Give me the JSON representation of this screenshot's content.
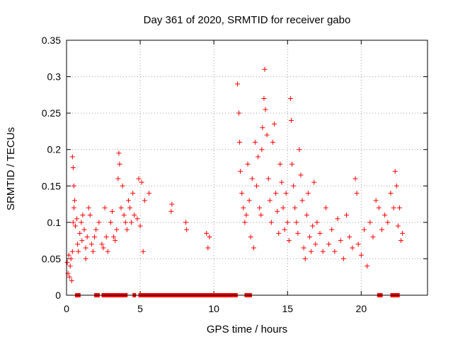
{
  "chart_data": {
    "type": "scatter",
    "title": "Day 361 of 2020, SRMTID for receiver gabo",
    "xlabel": "GPS time / hours",
    "ylabel": "SRMTID / TECUs",
    "xlim": [
      0,
      24.5
    ],
    "ylim": [
      0,
      0.35
    ],
    "x_ticks": [
      0,
      5,
      10,
      15,
      20
    ],
    "x_tick_labels": [
      "0",
      "5",
      "10",
      "15",
      "20"
    ],
    "y_ticks": [
      0,
      0.05,
      0.1,
      0.15,
      0.2,
      0.25,
      0.3,
      0.35
    ],
    "y_tick_labels": [
      "0",
      "0.05",
      "0.1",
      "0.15",
      "0.2",
      "0.25",
      "0.3",
      "0.35"
    ],
    "grid": true,
    "marker_color": "#ff0000",
    "series": [
      {
        "name": "SRMTID",
        "marker": "plus",
        "points": [
          [
            0.05,
            0.045
          ],
          [
            0.1,
            0.03
          ],
          [
            0.15,
            0.055
          ],
          [
            0.2,
            0.025
          ],
          [
            0.25,
            0.04
          ],
          [
            0.3,
            0.05
          ],
          [
            0.35,
            0.02
          ],
          [
            0.4,
            0.06
          ],
          [
            0.4,
            0.19
          ],
          [
            0.45,
            0.175
          ],
          [
            0.45,
            0.1
          ],
          [
            0.5,
            0.15
          ],
          [
            0.5,
            0.12
          ],
          [
            0.55,
            0.13
          ],
          [
            0.6,
            0.095
          ],
          [
            0.7,
            0.105
          ],
          [
            0.75,
            0.07
          ],
          [
            0.8,
            0.06
          ],
          [
            0.9,
            0.085
          ],
          [
            1.0,
            0.1
          ],
          [
            1.05,
            0.075
          ],
          [
            1.1,
            0.11
          ],
          [
            1.2,
            0.09
          ],
          [
            1.3,
            0.065
          ],
          [
            1.3,
            0.05
          ],
          [
            1.4,
            0.08
          ],
          [
            1.5,
            0.12
          ],
          [
            1.6,
            0.11
          ],
          [
            1.7,
            0.07
          ],
          [
            1.8,
            0.06
          ],
          [
            1.9,
            0.08
          ],
          [
            2.0,
            0.09
          ],
          [
            2.2,
            0.1
          ],
          [
            2.4,
            0.07
          ],
          [
            2.5,
            0.065
          ],
          [
            2.6,
            0.12
          ],
          [
            2.7,
            0.08
          ],
          [
            2.8,
            0.06
          ],
          [
            3.0,
            0.1
          ],
          [
            3.1,
            0.115
          ],
          [
            3.2,
            0.08
          ],
          [
            3.3,
            0.075
          ],
          [
            3.4,
            0.09
          ],
          [
            3.5,
            0.16
          ],
          [
            3.55,
            0.195
          ],
          [
            3.6,
            0.18
          ],
          [
            3.7,
            0.12
          ],
          [
            3.8,
            0.15
          ],
          [
            3.9,
            0.11
          ],
          [
            4.0,
            0.1
          ],
          [
            4.1,
            0.09
          ],
          [
            4.2,
            0.13
          ],
          [
            4.3,
            0.12
          ],
          [
            4.4,
            0.1
          ],
          [
            4.5,
            0.14
          ],
          [
            4.6,
            0.11
          ],
          [
            4.8,
            0.105
          ],
          [
            4.9,
            0.16
          ],
          [
            5.0,
            0.095
          ],
          [
            5.1,
            0.155
          ],
          [
            5.2,
            0.06
          ],
          [
            5.3,
            0.13
          ],
          [
            5.6,
            0.14
          ],
          [
            7.1,
            0.115
          ],
          [
            7.15,
            0.125
          ],
          [
            8.1,
            0.1
          ],
          [
            8.15,
            0.09
          ],
          [
            9.5,
            0.085
          ],
          [
            9.6,
            0.065
          ],
          [
            9.7,
            0.08
          ],
          [
            11.6,
            0.29
          ],
          [
            11.7,
            0.25
          ],
          [
            11.75,
            0.21
          ],
          [
            11.8,
            0.17
          ],
          [
            11.9,
            0.14
          ],
          [
            12.0,
            0.12
          ],
          [
            12.1,
            0.1
          ],
          [
            12.2,
            0.11
          ],
          [
            12.3,
            0.18
          ],
          [
            12.4,
            0.13
          ],
          [
            12.5,
            0.08
          ],
          [
            12.6,
            0.16
          ],
          [
            12.7,
            0.065
          ],
          [
            12.8,
            0.21
          ],
          [
            12.9,
            0.15
          ],
          [
            13.0,
            0.19
          ],
          [
            13.1,
            0.12
          ],
          [
            13.2,
            0.11
          ],
          [
            13.25,
            0.2
          ],
          [
            13.3,
            0.23
          ],
          [
            13.4,
            0.27
          ],
          [
            13.45,
            0.31
          ],
          [
            13.5,
            0.255
          ],
          [
            13.6,
            0.22
          ],
          [
            13.7,
            0.16
          ],
          [
            13.8,
            0.13
          ],
          [
            13.9,
            0.1
          ],
          [
            14.0,
            0.21
          ],
          [
            14.1,
            0.235
          ],
          [
            14.2,
            0.14
          ],
          [
            14.3,
            0.115
          ],
          [
            14.4,
            0.085
          ],
          [
            14.5,
            0.18
          ],
          [
            14.6,
            0.155
          ],
          [
            14.7,
            0.12
          ],
          [
            14.8,
            0.09
          ],
          [
            14.9,
            0.14
          ],
          [
            15.0,
            0.1
          ],
          [
            15.1,
            0.075
          ],
          [
            15.2,
            0.27
          ],
          [
            15.25,
            0.24
          ],
          [
            15.3,
            0.18
          ],
          [
            15.4,
            0.15
          ],
          [
            15.5,
            0.12
          ],
          [
            15.6,
            0.1
          ],
          [
            15.7,
            0.085
          ],
          [
            15.8,
            0.2
          ],
          [
            15.9,
            0.165
          ],
          [
            16.0,
            0.13
          ],
          [
            16.1,
            0.065
          ],
          [
            16.2,
            0.05
          ],
          [
            16.3,
            0.11
          ],
          [
            16.4,
            0.14
          ],
          [
            16.5,
            0.08
          ],
          [
            16.6,
            0.06
          ],
          [
            16.7,
            0.095
          ],
          [
            16.8,
            0.155
          ],
          [
            16.9,
            0.07
          ],
          [
            17.0,
            0.1
          ],
          [
            17.2,
            0.085
          ],
          [
            17.4,
            0.06
          ],
          [
            17.6,
            0.12
          ],
          [
            17.8,
            0.07
          ],
          [
            18.0,
            0.09
          ],
          [
            18.2,
            0.06
          ],
          [
            18.4,
            0.105
          ],
          [
            18.6,
            0.075
          ],
          [
            18.8,
            0.05
          ],
          [
            19.0,
            0.11
          ],
          [
            19.2,
            0.08
          ],
          [
            19.4,
            0.065
          ],
          [
            19.6,
            0.16
          ],
          [
            19.7,
            0.14
          ],
          [
            19.8,
            0.07
          ],
          [
            20.0,
            0.055
          ],
          [
            20.2,
            0.09
          ],
          [
            20.4,
            0.04
          ],
          [
            20.6,
            0.1
          ],
          [
            20.8,
            0.08
          ],
          [
            21.0,
            0.13
          ],
          [
            21.2,
            0.12
          ],
          [
            21.4,
            0.09
          ],
          [
            21.6,
            0.11
          ],
          [
            21.8,
            0.1
          ],
          [
            22.0,
            0.14
          ],
          [
            22.2,
            0.12
          ],
          [
            22.3,
            0.17
          ],
          [
            22.4,
            0.15
          ],
          [
            22.5,
            0.095
          ],
          [
            22.6,
            0.12
          ],
          [
            22.7,
            0.075
          ],
          [
            22.8,
            0.085
          ]
        ]
      },
      {
        "name": "zero-values",
        "marker": "square",
        "x_ranges": [
          [
            0.7,
            0.85
          ],
          [
            2.0,
            2.2
          ],
          [
            2.5,
            3.3
          ],
          [
            3.5,
            4.1
          ],
          [
            4.6,
            4.7
          ],
          [
            5.0,
            11.5
          ],
          [
            12.2,
            12.5
          ],
          [
            21.2,
            21.4
          ],
          [
            22.1,
            22.5
          ]
        ],
        "y": 0
      }
    ]
  }
}
